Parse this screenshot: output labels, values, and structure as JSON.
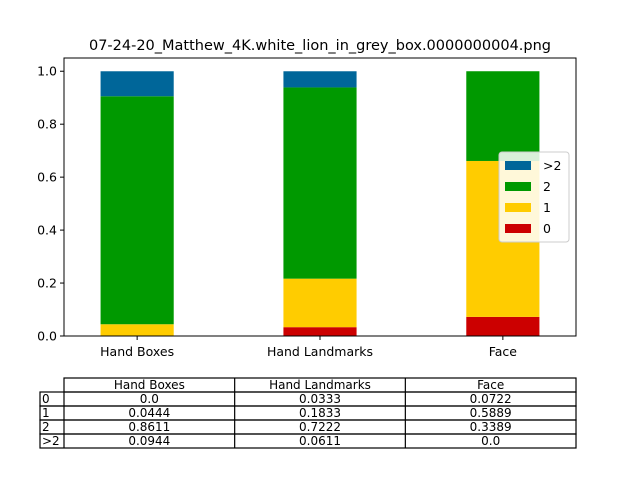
{
  "chart_data": {
    "type": "bar",
    "stacked": true,
    "title": "07-24-20_Matthew_4K.white_lion_in_grey_box.0000000004.png",
    "categories": [
      "Hand Boxes",
      "Hand Landmarks",
      "Face"
    ],
    "series": [
      {
        "name": "0",
        "color": "#cc0000",
        "values": [
          0.0,
          0.0333,
          0.0722
        ]
      },
      {
        "name": "1",
        "color": "#ffcc00",
        "values": [
          0.0444,
          0.1833,
          0.5889
        ]
      },
      {
        "name": "2",
        "color": "#009900",
        "values": [
          0.8611,
          0.7222,
          0.3389
        ]
      },
      {
        "name": ">2",
        "color": "#006699",
        "values": [
          0.0944,
          0.0611,
          0.0
        ]
      }
    ],
    "ylim": [
      0,
      1.05
    ],
    "yticks": [
      "0.0",
      "0.2",
      "0.4",
      "0.6",
      "0.8",
      "1.0"
    ],
    "legend_placement": "center-right",
    "legend_order": [
      ">2",
      "2",
      "1",
      "0"
    ],
    "table": {
      "columns": [
        "Hand Boxes",
        "Hand Landmarks",
        "Face"
      ],
      "rows": [
        {
          "label": "0",
          "cells": [
            "0.0",
            "0.0333",
            "0.0722"
          ]
        },
        {
          "label": "1",
          "cells": [
            "0.0444",
            "0.1833",
            "0.5889"
          ]
        },
        {
          "label": "2",
          "cells": [
            "0.8611",
            "0.7222",
            "0.3389"
          ]
        },
        {
          "label": ">2",
          "cells": [
            "0.0944",
            "0.0611",
            "0.0"
          ]
        }
      ]
    }
  }
}
